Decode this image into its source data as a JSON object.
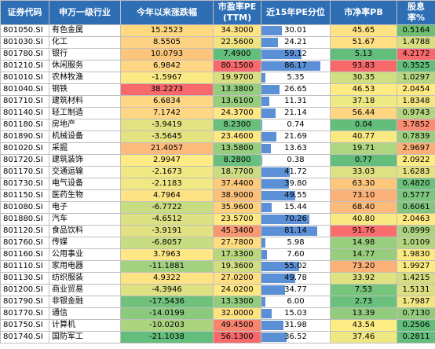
{
  "headers": [
    "证券代码",
    "申万一级行业",
    "今年以来涨跌幅",
    "市盈率PE\n(TTM)",
    "近15年PE分位",
    "市净率PB",
    "股息率%"
  ],
  "rows": [
    {
      "code": "801050.SI",
      "name": "有色金属",
      "chg": "15.2523",
      "pe": "34.3000",
      "pct": "30.01",
      "pb": "45.65",
      "dy": "0.5164",
      "chg_color": "#ffd980",
      "pe_color": "#ffe384",
      "pb_color": "#fde383",
      "dy_color": "#6fbf72"
    },
    {
      "code": "801030.SI",
      "name": "化工",
      "chg": "8.5505",
      "pe": "22.5600",
      "pct": "24.21",
      "pb": "51.67",
      "dy": "1.4788",
      "chg_color": "#fdd283",
      "pe_color": "#f1e37f",
      "pb_color": "#fee082",
      "dy_color": "#d8dd81"
    },
    {
      "code": "801780.SI",
      "name": "银行",
      "chg": "10.0793",
      "pe": "7.4900",
      "pct": "59.12",
      "pb": "5.13",
      "dy": "4.2172",
      "chg_color": "#fcc57c",
      "pe_color": "#63be7b",
      "pb_color": "#63be7b",
      "dy_color": "#f8696b"
    },
    {
      "code": "801210.SI",
      "name": "休闲服务",
      "chg": "6.9842",
      "pe": "80.1500",
      "pct": "86.17",
      "pb": "93.83",
      "dy": "0.3525",
      "chg_color": "#fed684",
      "pe_color": "#f8696b",
      "pb_color": "#f8696b",
      "dy_color": "#63be7b"
    },
    {
      "code": "801010.SI",
      "name": "农林牧渔",
      "chg": "-1.5967",
      "pe": "19.9700",
      "pct": "5.35",
      "pb": "30.35",
      "dy": "1.0297",
      "chg_color": "#fbe983",
      "pe_color": "#d8df81",
      "pb_color": "#d0df81",
      "dy_color": "#b7d680"
    },
    {
      "code": "801040.SI",
      "name": "钢铁",
      "chg": "38.2273",
      "pe": "13.3800",
      "pct": "26.65",
      "pb": "46.53",
      "dy": "2.0454",
      "chg_color": "#f8696b",
      "pe_color": "#95cc7e",
      "pb_color": "#feeb84",
      "dy_color": "#fee983"
    },
    {
      "code": "801710.SI",
      "name": "建筑材料",
      "chg": "6.6834",
      "pe": "13.6100",
      "pct": "11.31",
      "pb": "37.18",
      "dy": "1.8348",
      "chg_color": "#fed684",
      "pe_color": "#98cd7e",
      "pb_color": "#edea83",
      "dy_color": "#f4e783"
    },
    {
      "code": "801140.SI",
      "name": "轻工制造",
      "chg": "7.1742",
      "pe": "24.3700",
      "pct": "21.14",
      "pb": "56.44",
      "dy": "0.9743",
      "chg_color": "#fed684",
      "pe_color": "#fee784",
      "pb_color": "#fed581",
      "dy_color": "#b3d580"
    },
    {
      "code": "801180.SI",
      "name": "房地产",
      "chg": "-3.9419",
      "pe": "8.2300",
      "pct": "0.74",
      "pb": "0.04",
      "dy": "3.7852",
      "chg_color": "#e2e282",
      "pe_color": "#68c07c",
      "pb_color": "#63be7b",
      "dy_color": "#fa8c72"
    },
    {
      "code": "801890.SI",
      "name": "机械设备",
      "chg": "-3.5645",
      "pe": "23.4600",
      "pct": "21.69",
      "pb": "40.77",
      "dy": "0.7839",
      "chg_color": "#e4e382",
      "pe_color": "#fde883",
      "pb_color": "#f8e983",
      "dy_color": "#9ece7f"
    },
    {
      "code": "801020.SI",
      "name": "采掘",
      "chg": "21.4057",
      "pe": "13.5800",
      "pct": "13.63",
      "pb": "19.71",
      "dy": "2.9697",
      "chg_color": "#fcbb7b",
      "pe_color": "#97cd7e",
      "pb_color": "#aed57f",
      "dy_color": "#fcb078"
    },
    {
      "code": "801720.SI",
      "name": "建筑装饰",
      "chg": "2.9947",
      "pe": "8.2800",
      "pct": "0.38",
      "pb": "0.77",
      "dy": "2.0922",
      "chg_color": "#feeb84",
      "pe_color": "#68c07c",
      "pb_color": "#63be7b",
      "dy_color": "#feea83"
    },
    {
      "code": "801170.SI",
      "name": "交通运输",
      "chg": "-2.1673",
      "pe": "18.7700",
      "pct": "41.72",
      "pb": "33.03",
      "dy": "1.6283",
      "chg_color": "#f1e783",
      "pe_color": "#cbdc81",
      "pb_color": "#dde181",
      "dy_color": "#e6e282"
    },
    {
      "code": "801730.SI",
      "name": "电气设备",
      "chg": "-2.1183",
      "pe": "37.4400",
      "pct": "39.80",
      "pb": "63.30",
      "dy": "0.4820",
      "chg_color": "#f1e783",
      "pe_color": "#fdc97c",
      "pb_color": "#fdc67d",
      "dy_color": "#6cc17c"
    },
    {
      "code": "801150.SI",
      "name": "医药生物",
      "chg": "4.7964",
      "pe": "38.9000",
      "pct": "49.55",
      "pb": "73.10",
      "dy": "0.5777",
      "chg_color": "#fee384",
      "pe_color": "#fdc07b",
      "pb_color": "#fcb179",
      "dy_color": "#7dc67d"
    },
    {
      "code": "801080.SI",
      "name": "电子",
      "chg": "-6.7722",
      "pe": "35.9600",
      "pct": "15.44",
      "pb": "68.40",
      "dy": "0.6061",
      "chg_color": "#c8dd81",
      "pe_color": "#fdd17f",
      "pb_color": "#fdbb7b",
      "dy_color": "#82c77d"
    },
    {
      "code": "801880.SI",
      "name": "汽车",
      "chg": "-4.6512",
      "pe": "23.5700",
      "pct": "70.26",
      "pb": "40.80",
      "dy": "2.0463",
      "chg_color": "#dbe182",
      "pe_color": "#fde883",
      "pb_color": "#f8e983",
      "dy_color": "#fee983"
    },
    {
      "code": "801120.SI",
      "name": "食品饮料",
      "chg": "-3.9191",
      "pe": "45.3400",
      "pct": "81.14",
      "pb": "91.76",
      "dy": "0.8999",
      "chg_color": "#e2e282",
      "pe_color": "#fa9773",
      "pb_color": "#f96e6c",
      "dy_color": "#acd37f"
    },
    {
      "code": "801760.SI",
      "name": "传媒",
      "chg": "-6.8057",
      "pe": "27.7800",
      "pct": "5.98",
      "pb": "14.98",
      "dy": "1.0109",
      "chg_color": "#c8dd81",
      "pe_color": "#fedd82",
      "pb_color": "#99ce7e",
      "dy_color": "#b5d680"
    },
    {
      "code": "801160.SI",
      "name": "公用事业",
      "chg": "3.7963",
      "pe": "17.3300",
      "pct": "7.60",
      "pb": "14.77",
      "dy": "1.9830",
      "chg_color": "#fee784",
      "pe_color": "#bad780",
      "pb_color": "#98cd7e",
      "dy_color": "#fbea83"
    },
    {
      "code": "801110.SI",
      "name": "家用电器",
      "chg": "-11.1881",
      "pe": "19.3600",
      "pct": "55.02",
      "pb": "73.20",
      "dy": "1.9927",
      "chg_color": "#a2d17f",
      "pe_color": "#d1dd81",
      "pb_color": "#fcb179",
      "dy_color": "#fbea83"
    },
    {
      "code": "801130.SI",
      "name": "纺织服装",
      "chg": "4.9322",
      "pe": "27.0200",
      "pct": "49.78",
      "pb": "33.92",
      "dy": "1.4215",
      "chg_color": "#fee384",
      "pe_color": "#fedf83",
      "pb_color": "#e0e282",
      "dy_color": "#d3dc81"
    },
    {
      "code": "801200.SI",
      "name": "商业贸易",
      "chg": "-4.3946",
      "pe": "24.0200",
      "pct": "34.77",
      "pb": "7.53",
      "dy": "1.5131",
      "chg_color": "#dde182",
      "pe_color": "#fee884",
      "pb_color": "#77c47d",
      "dy_color": "#dcdf81"
    },
    {
      "code": "801790.SI",
      "name": "非银金融",
      "chg": "-17.5436",
      "pe": "13.3300",
      "pct": "6.00",
      "pb": "2.73",
      "dy": "1.7987",
      "chg_color": "#6fc17c",
      "pe_color": "#94cc7e",
      "pb_color": "#6ac07c",
      "dy_color": "#f0e582"
    },
    {
      "code": "801770.SI",
      "name": "通信",
      "chg": "-14.0199",
      "pe": "32.0000",
      "pct": "15.03",
      "pb": "13.39",
      "dy": "0.7130",
      "chg_color": "#8bca7e",
      "pe_color": "#fee282",
      "pb_color": "#92cb7e",
      "dy_color": "#94cc7e"
    },
    {
      "code": "801750.SI",
      "name": "计算机",
      "chg": "-10.0203",
      "pe": "49.4500",
      "pct": "31.98",
      "pb": "43.54",
      "dy": "0.2506",
      "chg_color": "#acd47f",
      "pe_color": "#f98570",
      "pb_color": "#fdeb84",
      "dy_color": "#63be7b"
    },
    {
      "code": "801740.SI",
      "name": "国防军工",
      "chg": "-21.1038",
      "pe": "56.1300",
      "pct": "36.52",
      "pb": "37.46",
      "dy": "0.2811",
      "chg_color": "#63be7b",
      "pe_color": "#f8696b",
      "pb_color": "#efe882",
      "dy_color": "#63be7b"
    }
  ],
  "bar_color": "#5b8fd6",
  "header_color": "#2e6eb5"
}
